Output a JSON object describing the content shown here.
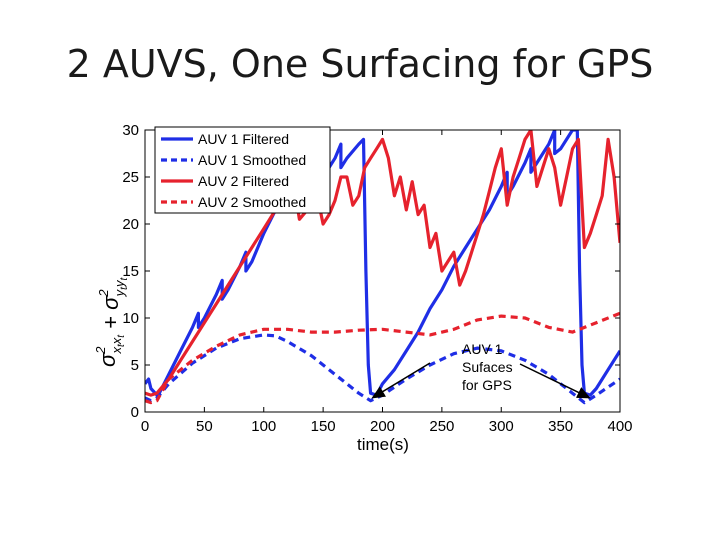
{
  "slide": {
    "title": "2 AUVS, One Surfacing for GPS"
  },
  "colors": {
    "auv1": "#1f2ee6",
    "auv2": "#e6222d",
    "annotation": "#000000"
  },
  "chart_data": {
    "type": "line",
    "title": "",
    "xlabel": "time(s)",
    "ylabel": "σ²xt xt + σ²yt yt",
    "xlim": [
      0,
      400
    ],
    "ylim": [
      0,
      30
    ],
    "xticks": [
      0,
      50,
      100,
      150,
      200,
      250,
      300,
      350,
      400
    ],
    "yticks": [
      0,
      5,
      10,
      15,
      20,
      25,
      30
    ],
    "legend_position": "top-left",
    "series": [
      {
        "name": "AUV 1 Filtered",
        "color": "#1f2ee6",
        "style": "solid",
        "x": [
          0,
          3,
          5,
          10,
          12,
          20,
          30,
          40,
          45,
          45,
          50,
          60,
          65,
          65,
          70,
          80,
          85,
          85,
          90,
          100,
          110,
          120,
          125,
          125,
          130,
          140,
          145,
          145,
          150,
          160,
          165,
          165,
          170,
          180,
          184,
          186,
          188,
          190,
          195,
          200,
          210,
          220,
          230,
          240,
          250,
          260,
          270,
          280,
          290,
          300,
          305,
          305,
          310,
          320,
          325,
          325,
          330,
          340,
          345,
          345,
          350,
          360,
          364,
          366,
          368,
          370,
          375,
          380,
          390,
          400
        ],
        "y": [
          3,
          3.5,
          2.5,
          1.8,
          2,
          4,
          6.5,
          9,
          10.5,
          9,
          10,
          12.5,
          14,
          12,
          13,
          15.5,
          17,
          15,
          16,
          19,
          21.5,
          24,
          25.5,
          23,
          24,
          25.5,
          26.5,
          24,
          25,
          27,
          28.5,
          26,
          27,
          28.5,
          29,
          15,
          5,
          2,
          1.8,
          3,
          4.5,
          6.5,
          8.5,
          11,
          13,
          15.5,
          17.5,
          19.5,
          21.5,
          24,
          25.5,
          23,
          24,
          26.5,
          28,
          25.5,
          26.5,
          28.5,
          30,
          27.5,
          28,
          30,
          30,
          15,
          5,
          2,
          1.8,
          2.5,
          4.5,
          6.5
        ]
      },
      {
        "name": "AUV 1 Smoothed",
        "color": "#1f2ee6",
        "style": "dashed",
        "x": [
          0,
          5,
          10,
          20,
          40,
          60,
          80,
          100,
          110,
          120,
          140,
          160,
          180,
          190,
          200,
          220,
          240,
          260,
          280,
          300,
          320,
          340,
          360,
          370,
          380,
          400
        ],
        "y": [
          1.5,
          1.2,
          1.5,
          3,
          5.2,
          6.8,
          7.8,
          8.2,
          8.1,
          7.5,
          6,
          4,
          2,
          1.2,
          1.8,
          3.5,
          5,
          6.2,
          6.8,
          6.5,
          5.5,
          4,
          2,
          1,
          1.8,
          3.5
        ]
      },
      {
        "name": "AUV 2 Filtered",
        "color": "#e6222d",
        "style": "solid",
        "x": [
          0,
          5,
          10,
          20,
          30,
          40,
          50,
          60,
          70,
          80,
          90,
          100,
          110,
          120,
          125,
          130,
          140,
          145,
          150,
          155,
          160,
          165,
          170,
          175,
          180,
          185,
          190,
          195,
          200,
          205,
          210,
          215,
          220,
          225,
          230,
          235,
          240,
          245,
          250,
          255,
          260,
          265,
          270,
          275,
          280,
          285,
          290,
          295,
          300,
          305,
          310,
          315,
          320,
          325,
          330,
          335,
          340,
          345,
          350,
          355,
          360,
          365,
          370,
          375,
          380,
          385,
          390,
          395,
          400
        ],
        "y": [
          2,
          1.8,
          2,
          3.5,
          5.5,
          7.5,
          9.5,
          11.5,
          13.5,
          15.5,
          17.5,
          19.5,
          21.5,
          23.5,
          24.5,
          20.5,
          22,
          23,
          20,
          21,
          22.5,
          25,
          25,
          22,
          23,
          26,
          27,
          28,
          29,
          27,
          23,
          25,
          21.5,
          24.5,
          21,
          22,
          17.5,
          19,
          15,
          16,
          17,
          13.5,
          15,
          17,
          19,
          21,
          23.5,
          26,
          28,
          22,
          25,
          27,
          29,
          30,
          24,
          26,
          28,
          26,
          22,
          25,
          28,
          29,
          17.5,
          19,
          21,
          23,
          29,
          25,
          18
        ]
      },
      {
        "name": "AUV 2 Smoothed",
        "color": "#e6222d",
        "style": "dashed",
        "x": [
          0,
          5,
          10,
          20,
          40,
          60,
          80,
          100,
          120,
          140,
          160,
          180,
          200,
          220,
          240,
          260,
          280,
          300,
          320,
          340,
          360,
          380,
          400
        ],
        "y": [
          1.2,
          1,
          1.2,
          3.5,
          5.5,
          7,
          8.2,
          8.8,
          8.8,
          8.5,
          8.5,
          8.7,
          8.8,
          8.5,
          8.2,
          8.8,
          9.8,
          10.2,
          10,
          9,
          8.5,
          9.5,
          10.5
        ]
      }
    ],
    "annotation": {
      "lines": [
        "AUV 1",
        "Sufaces",
        "for GPS"
      ],
      "arrow_targets_x": [
        190,
        370
      ],
      "arrow_target_y": 1.2
    }
  }
}
